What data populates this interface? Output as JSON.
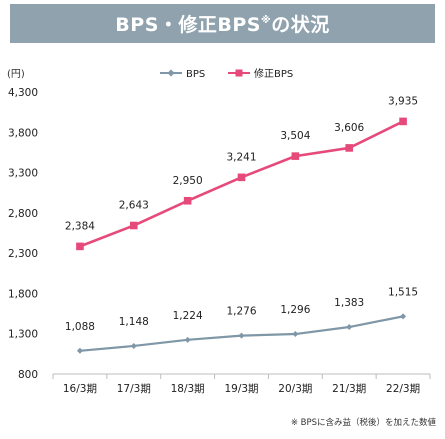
{
  "chart_data": {
    "type": "line",
    "title": "BPS・修正BPS",
    "title_mark": "※",
    "title_suffix": "の状況",
    "y_unit": "(円)",
    "categories": [
      "16/3期",
      "17/3期",
      "18/3期",
      "19/3期",
      "20/3期",
      "21/3期",
      "22/3期"
    ],
    "ylim": [
      800,
      4300
    ],
    "yticks": [
      800,
      1300,
      1800,
      2300,
      2800,
      3300,
      3800,
      4300
    ],
    "ytick_labels": [
      "800",
      "1,300",
      "1,800",
      "2,300",
      "2,800",
      "3,300",
      "3,800",
      "4,300"
    ],
    "grid": false,
    "legend_position": "top-center",
    "series": [
      {
        "name": "BPS",
        "color": "#7f97a6",
        "marker": "diamond",
        "values": [
          1088,
          1148,
          1224,
          1276,
          1296,
          1383,
          1515
        ],
        "labels": [
          "1,088",
          "1,148",
          "1,224",
          "1,276",
          "1,296",
          "1,383",
          "1,515"
        ]
      },
      {
        "name": "修正BPS",
        "color": "#e64a7b",
        "marker": "square",
        "values": [
          2384,
          2643,
          2950,
          3241,
          3504,
          3606,
          3935
        ],
        "labels": [
          "2,384",
          "2,643",
          "2,950",
          "3,241",
          "3,504",
          "3,606",
          "3,935"
        ]
      }
    ],
    "footnote": "※ BPSに含み益（税後）を加えた数値"
  }
}
